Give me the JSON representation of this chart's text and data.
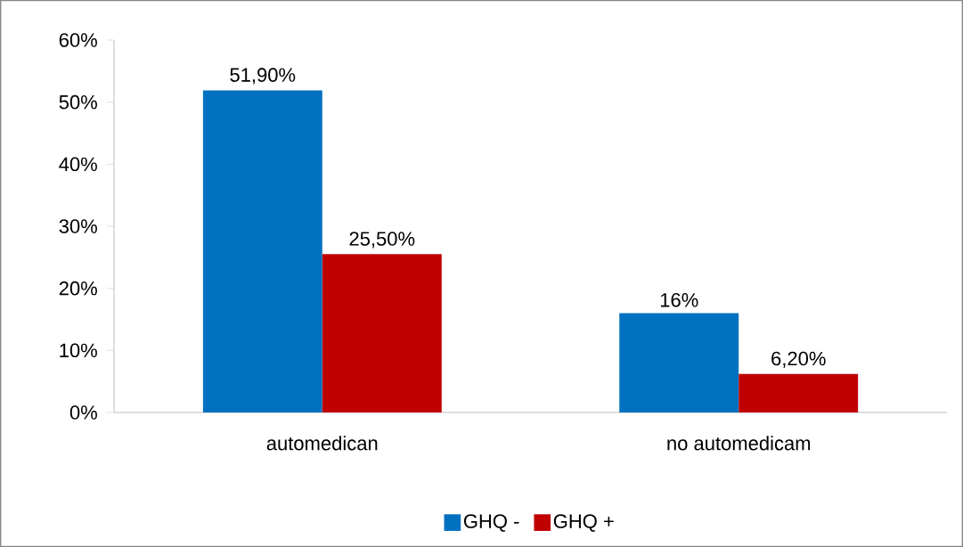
{
  "chart_data": {
    "type": "bar",
    "categories": [
      "automedican",
      "no automedicam"
    ],
    "series": [
      {
        "name": "GHQ -",
        "color": "#0070c0",
        "values": [
          51.9,
          16
        ],
        "value_labels": [
          "51,90%",
          "16%"
        ]
      },
      {
        "name": "GHQ +",
        "color": "#c00000",
        "values": [
          25.5,
          6.2
        ],
        "value_labels": [
          "25,50%",
          "6,20%"
        ]
      }
    ],
    "ylim": [
      0,
      60
    ],
    "yticks": [
      {
        "value": 0,
        "label": "0%"
      },
      {
        "value": 10,
        "label": "10%"
      },
      {
        "value": 20,
        "label": "20%"
      },
      {
        "value": 30,
        "label": "30%"
      },
      {
        "value": 40,
        "label": "40%"
      },
      {
        "value": 50,
        "label": "50%"
      },
      {
        "value": 60,
        "label": "60%"
      }
    ],
    "legend": "bottom"
  }
}
